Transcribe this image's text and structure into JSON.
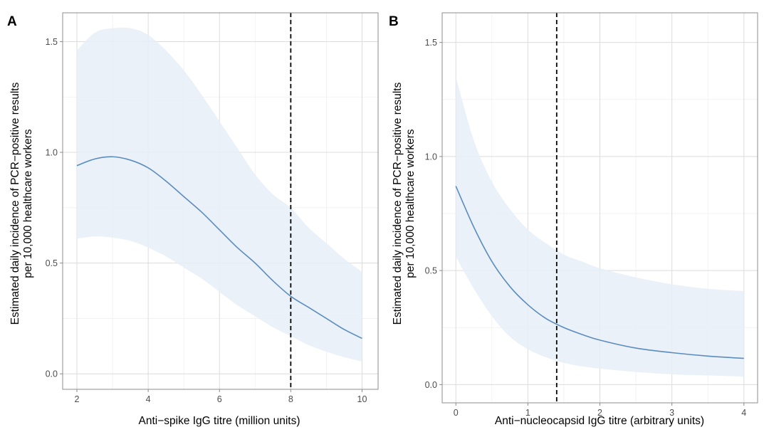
{
  "chart_data": [
    {
      "panel": "A",
      "type": "line",
      "xlabel": "Anti−spike IgG titre (million units)",
      "ylabel": [
        "Estimated daily incidence of PCR−positive results",
        "per 10,000 healthcare workers"
      ],
      "xlim": [
        1.6,
        10.45
      ],
      "ylim": [
        -0.07,
        1.63
      ],
      "xticks": [
        2,
        4,
        6,
        8,
        10
      ],
      "xtick_labels": [
        "2",
        "4",
        "6",
        "8",
        "10"
      ],
      "yticks": [
        0.0,
        0.5,
        1.0,
        1.5
      ],
      "ytick_labels": [
        "0.0",
        "0.5",
        "1.0",
        "1.5"
      ],
      "grid": true,
      "vline": 8,
      "x": [
        2,
        2.5,
        3,
        3.5,
        4,
        4.5,
        5,
        5.5,
        6,
        6.5,
        7,
        7.5,
        8,
        8.5,
        9,
        9.5,
        10
      ],
      "y": [
        0.94,
        0.97,
        0.98,
        0.965,
        0.93,
        0.87,
        0.8,
        0.73,
        0.65,
        0.57,
        0.5,
        0.42,
        0.35,
        0.3,
        0.25,
        0.2,
        0.16
      ],
      "ci_lower": [
        0.61,
        0.62,
        0.615,
        0.6,
        0.57,
        0.53,
        0.48,
        0.43,
        0.37,
        0.31,
        0.26,
        0.21,
        0.17,
        0.13,
        0.1,
        0.075,
        0.055
      ],
      "ci_upper": [
        1.46,
        1.54,
        1.56,
        1.56,
        1.53,
        1.46,
        1.37,
        1.26,
        1.14,
        1.02,
        0.9,
        0.81,
        0.75,
        0.66,
        0.59,
        0.52,
        0.46
      ]
    },
    {
      "panel": "B",
      "type": "line",
      "xlabel": "Anti−nucleocapsid IgG titre (arbitrary units)",
      "ylabel": [
        "Estimated daily incidence of PCR−positive results",
        "per 10,000 healthcare workers"
      ],
      "xlim": [
        -0.19,
        4.19
      ],
      "ylim": [
        -0.08,
        1.63
      ],
      "xticks": [
        0,
        1,
        2,
        3,
        4
      ],
      "xtick_labels": [
        "0",
        "1",
        "2",
        "3",
        "4"
      ],
      "yticks": [
        0.0,
        0.5,
        1.0,
        1.5
      ],
      "ytick_labels": [
        "0.0",
        "0.5",
        "1.0",
        "1.5"
      ],
      "grid": true,
      "vline": 1.4,
      "x": [
        0,
        0.25,
        0.5,
        0.75,
        1,
        1.25,
        1.5,
        1.75,
        2,
        2.5,
        3,
        3.5,
        4
      ],
      "y": [
        0.87,
        0.69,
        0.54,
        0.43,
        0.35,
        0.29,
        0.25,
        0.22,
        0.195,
        0.16,
        0.14,
        0.125,
        0.115
      ],
      "ci_lower": [
        0.56,
        0.42,
        0.3,
        0.21,
        0.155,
        0.12,
        0.095,
        0.08,
        0.07,
        0.055,
        0.045,
        0.04,
        0.035
      ],
      "ci_upper": [
        1.35,
        1.07,
        0.89,
        0.77,
        0.68,
        0.62,
        0.57,
        0.54,
        0.51,
        0.47,
        0.44,
        0.42,
        0.41
      ]
    }
  ]
}
